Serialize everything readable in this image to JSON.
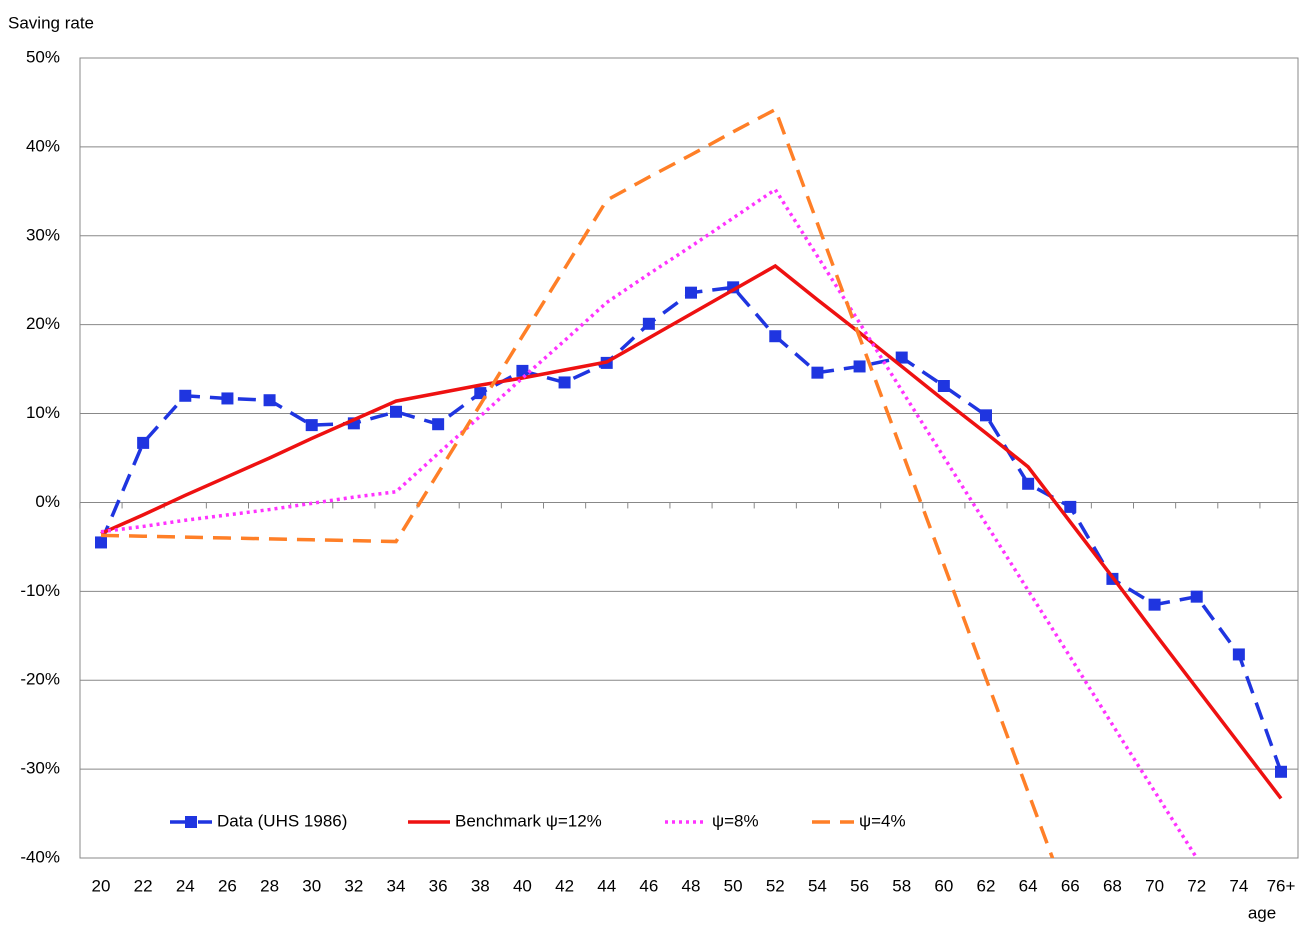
{
  "chart_data": {
    "type": "line",
    "y_label": "Saving rate",
    "x_label": "age",
    "categories": [
      "20",
      "22",
      "24",
      "26",
      "28",
      "30",
      "32",
      "34",
      "36",
      "38",
      "40",
      "42",
      "44",
      "46",
      "48",
      "50",
      "52",
      "54",
      "56",
      "58",
      "60",
      "62",
      "64",
      "66",
      "68",
      "70",
      "72",
      "74",
      "76+"
    ],
    "ylim": [
      -40,
      50
    ],
    "yticks": [
      {
        "value": -40,
        "label": "-40%"
      },
      {
        "value": -30,
        "label": "-30%"
      },
      {
        "value": -20,
        "label": "-20%"
      },
      {
        "value": -10,
        "label": "-10%"
      },
      {
        "value": 0,
        "label": "0%"
      },
      {
        "value": 10,
        "label": "10%"
      },
      {
        "value": 20,
        "label": "20%"
      },
      {
        "value": 30,
        "label": "30%"
      },
      {
        "value": 40,
        "label": "40%"
      },
      {
        "value": 50,
        "label": "50%"
      }
    ],
    "grid": true,
    "legend": "bottom",
    "series": [
      {
        "name": "Data (UHS 1986)",
        "color": "#1f35e0",
        "style": "dashed",
        "marker": "square",
        "values": [
          -4.5,
          6.7,
          12.0,
          11.7,
          11.5,
          8.7,
          8.9,
          10.2,
          8.8,
          12.3,
          14.8,
          13.5,
          15.7,
          20.1,
          23.6,
          24.2,
          18.7,
          14.6,
          15.3,
          16.3,
          13.1,
          9.8,
          2.1,
          -0.5,
          -8.6,
          -11.5,
          -10.6,
          -17.1,
          -30.3
        ]
      },
      {
        "name": "Benchmark  ψ=12%",
        "color": "#ee1111",
        "style": "solid",
        "values": [
          -3.5,
          -1.4,
          0.8,
          2.9,
          5.0,
          7.2,
          9.3,
          11.4,
          12.3,
          13.2,
          14.0,
          14.9,
          15.8,
          18.5,
          21.2,
          23.9,
          26.6,
          22.8,
          19.1,
          15.3,
          11.5,
          7.8,
          4.0,
          -2.2,
          -8.4,
          -14.7,
          -20.9,
          -27.1,
          -33.3
        ]
      },
      {
        "name": "ψ=8%",
        "color": "#ff33ff",
        "style": "dotted",
        "values": [
          -3.3,
          -2.7,
          -2.0,
          -1.4,
          -0.8,
          -0.1,
          0.6,
          1.2,
          5.5,
          9.7,
          14.0,
          18.2,
          22.5,
          25.7,
          28.8,
          32.0,
          35.2,
          27.7,
          20.2,
          12.6,
          5.1,
          -2.4,
          -9.9,
          -17.4,
          -25.0,
          -32.5,
          -40.0,
          null,
          null
        ]
      },
      {
        "name": "ψ=4%",
        "color": "#ff7f27",
        "style": "dashed",
        "values": [
          -3.7,
          -3.8,
          -3.9,
          -4.0,
          -4.1,
          -4.2,
          -4.3,
          -4.4,
          3.3,
          11.0,
          18.7,
          26.3,
          34.0,
          36.6,
          39.1,
          41.7,
          44.2,
          31.4,
          18.6,
          5.8,
          -7.0,
          -19.8,
          -32.6,
          -45.4,
          null,
          null,
          null,
          null,
          null
        ]
      }
    ]
  }
}
